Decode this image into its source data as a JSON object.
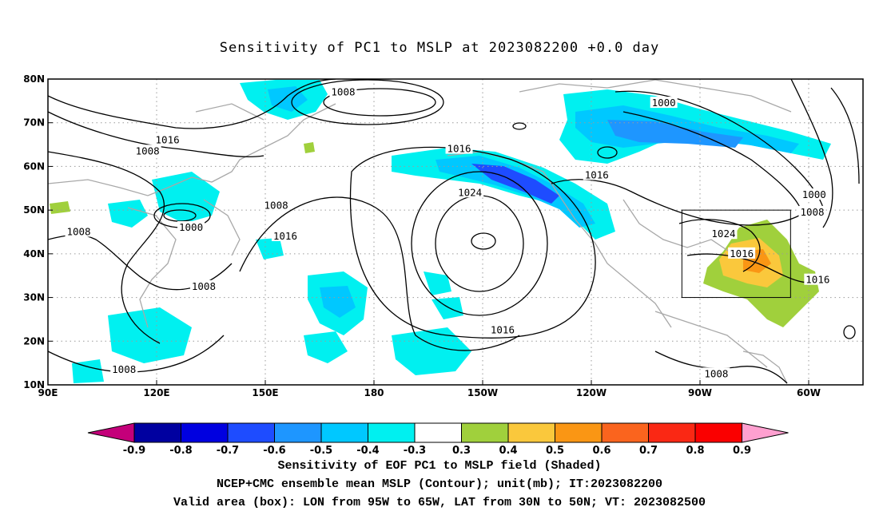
{
  "title": "Sensitivity of PC1 to MSLP at 2023082200 +0.0 day",
  "map": {
    "lon_ticks": [
      "90E",
      "120E",
      "150E",
      "180",
      "150W",
      "120W",
      "90W",
      "60W"
    ],
    "lat_ticks": [
      "80N",
      "70N",
      "60N",
      "50N",
      "40N",
      "30N",
      "20N",
      "10N"
    ],
    "lon_range": [
      90,
      315
    ],
    "lat_range": [
      10,
      80
    ],
    "grid": "dotted",
    "valid_box": {
      "lon_west": "95W",
      "lon_east": "65W",
      "lat_south": "30N",
      "lat_north": "50N"
    },
    "contour_labels": [
      {
        "text": "1008",
        "lon": 171.5,
        "lat": 77.0
      },
      {
        "text": "1000",
        "lon": 260.0,
        "lat": 74.5
      },
      {
        "text": "1016",
        "lon": 123.0,
        "lat": 66.0
      },
      {
        "text": "1008",
        "lon": 117.5,
        "lat": 63.5
      },
      {
        "text": "1016",
        "lon": 203.5,
        "lat": 64.0
      },
      {
        "text": "1016",
        "lon": 241.5,
        "lat": 58.0
      },
      {
        "text": "1024",
        "lon": 206.5,
        "lat": 54.0
      },
      {
        "text": "1000",
        "lon": 301.5,
        "lat": 53.5
      },
      {
        "text": "1008",
        "lon": 153.0,
        "lat": 51.0
      },
      {
        "text": "1008",
        "lon": 301.0,
        "lat": 49.5
      },
      {
        "text": "1000",
        "lon": 129.5,
        "lat": 46.0
      },
      {
        "text": "1008",
        "lon": 98.5,
        "lat": 45.0
      },
      {
        "text": "1016",
        "lon": 155.5,
        "lat": 44.0
      },
      {
        "text": "1024",
        "lon": 276.5,
        "lat": 44.5
      },
      {
        "text": "1016",
        "lon": 281.5,
        "lat": 40.0
      },
      {
        "text": "1016",
        "lon": 302.5,
        "lat": 34.0
      },
      {
        "text": "1008",
        "lon": 133.0,
        "lat": 32.5
      },
      {
        "text": "1016",
        "lon": 215.5,
        "lat": 22.5
      },
      {
        "text": "1008",
        "lon": 111.0,
        "lat": 13.5
      },
      {
        "text": "1008",
        "lon": 274.5,
        "lat": 12.5
      }
    ]
  },
  "colorbar": {
    "labels": [
      "-0.9",
      "-0.8",
      "-0.7",
      "-0.6",
      "-0.5",
      "-0.4",
      "-0.3",
      "0.3",
      "0.4",
      "0.5",
      "0.6",
      "0.7",
      "0.8",
      "0.9"
    ],
    "colors": [
      "#c4007a",
      "#0000a0",
      "#0000e0",
      "#1e4cff",
      "#1e96ff",
      "#00c8ff",
      "#00f0f0",
      "#ffffff",
      "#a0d03c",
      "#fac83c",
      "#fa9614",
      "#fa641e",
      "#fa2814",
      "#fa0000",
      "#ffa0d0"
    ]
  },
  "captions": {
    "line1": "Sensitivity of EOF PC1 to MSLP field (Shaded)",
    "line2": "NCEP+CMC ensemble mean MSLP (Contour); unit(mb); IT:2023082200",
    "line3": "Valid area (box): LON from 95W to 65W, LAT from 30N to 50N; VT: 2023082500"
  }
}
